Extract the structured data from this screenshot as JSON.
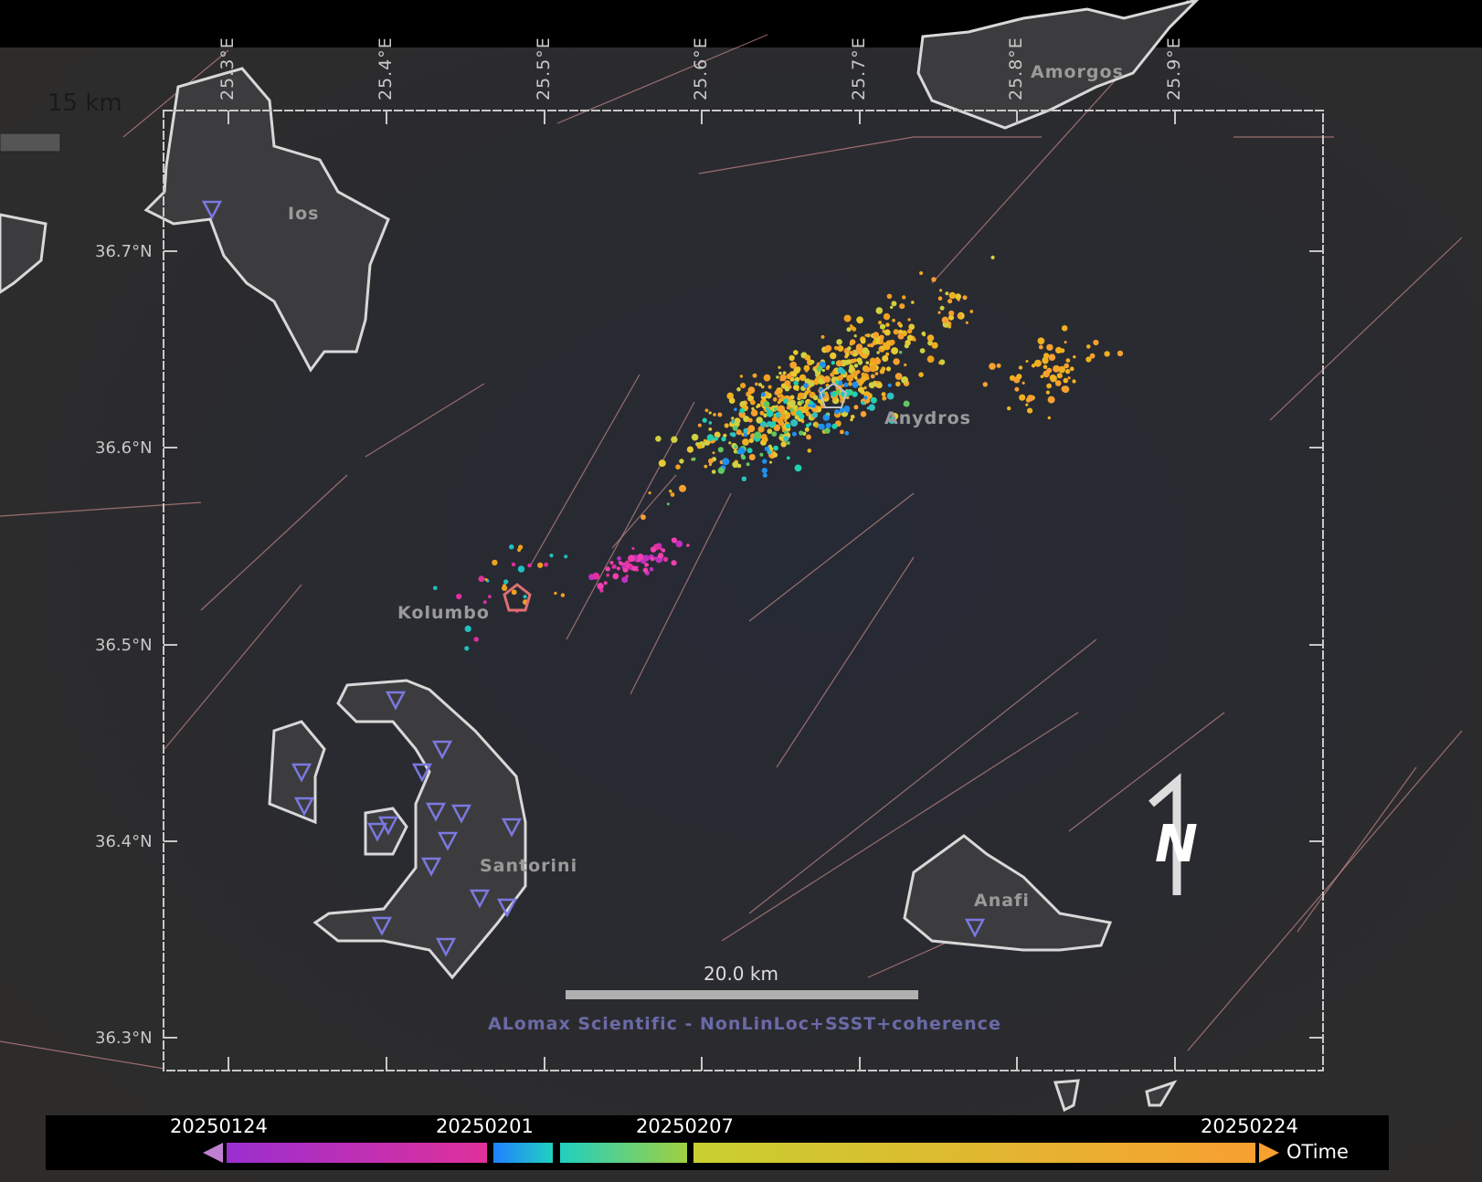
{
  "map": {
    "scale_legend_top": "15 km",
    "scale_bar_label": "20.0 km",
    "north_label": "N",
    "credit": "ALomax Scientific - NonLinLoc+SSST+coherence",
    "lon_ticks": [
      "25.3°E",
      "25.4°E",
      "25.5°E",
      "25.6°E",
      "25.7°E",
      "25.8°E",
      "25.9°E"
    ],
    "lat_ticks": [
      "36.7°N",
      "36.6°N",
      "36.5°N",
      "36.4°N",
      "36.3°N"
    ],
    "places": {
      "ios": "Ios",
      "amorgos": "Amorgos",
      "anydros": "Anydros",
      "kolumbo": "Kolumbo",
      "santorini": "Santorini",
      "anafi": "Anafi"
    },
    "colors": {
      "station": "#7b78e0",
      "coastline": "#d8d8d8",
      "fault": "#c98a8a",
      "kolumbo_marker": "#e07070"
    }
  },
  "colorbar": {
    "title": "OTime",
    "ticks": [
      "20250124",
      "20250201",
      "20250207",
      "20250224"
    ],
    "colors": [
      "#9a2fd0",
      "#e0309a",
      "#2080ff",
      "#20d0c0",
      "#a0d040",
      "#f8a030"
    ]
  }
}
